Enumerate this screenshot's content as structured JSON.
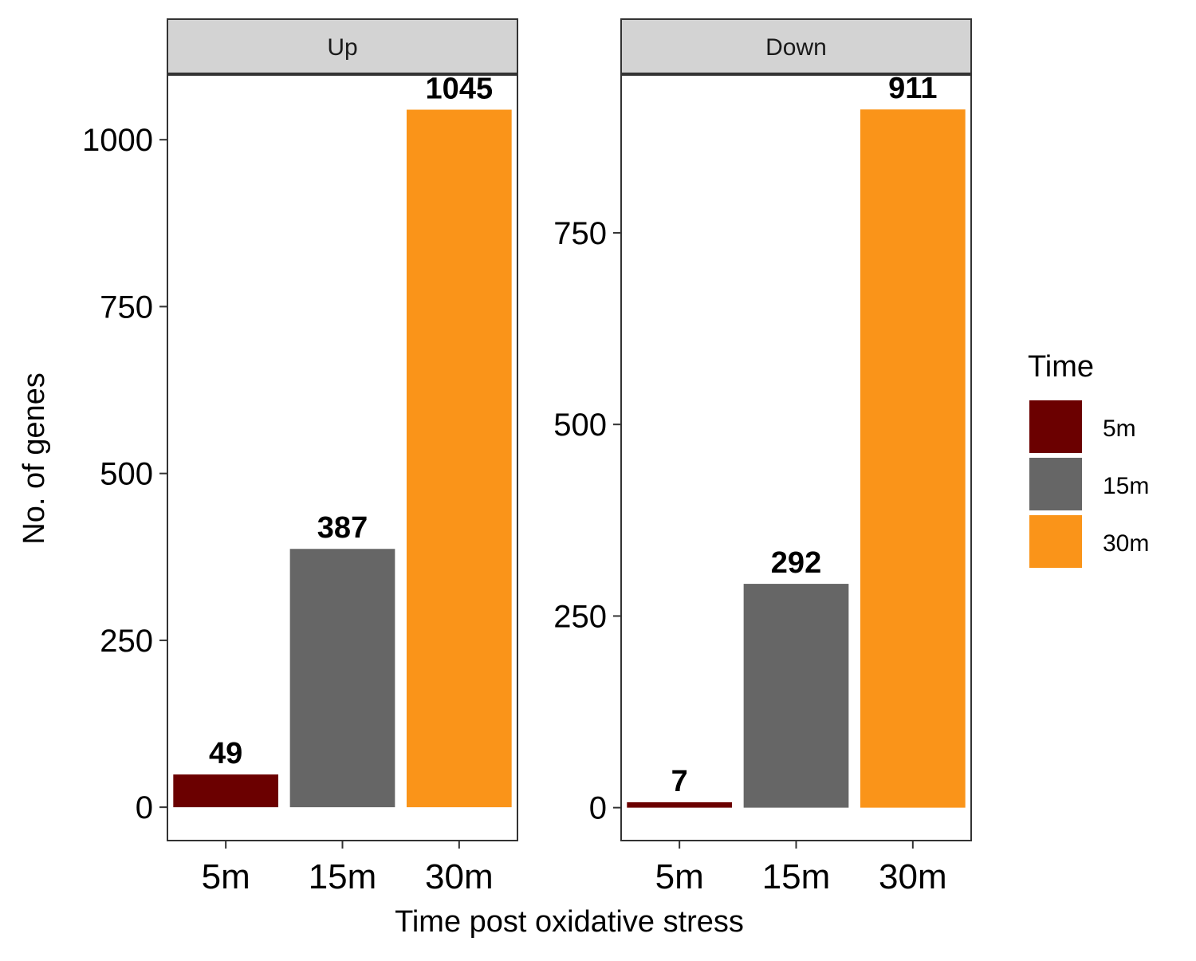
{
  "chart_data": {
    "type": "bar",
    "xlabel": "Time post oxidative stress",
    "ylabel": "No. of genes",
    "categories": [
      "5m",
      "15m",
      "30m"
    ],
    "colors": {
      "5m": "#6b0000",
      "15m": "#666666",
      "30m": "#fa9419"
    },
    "legend": {
      "title": "Time",
      "placement": "right",
      "entries": [
        "5m",
        "15m",
        "30m"
      ]
    },
    "panels": [
      {
        "name": "Up",
        "values": [
          49,
          387,
          1045
        ],
        "data_labels": [
          "49",
          "387",
          "1045"
        ],
        "ylim": [
          -50,
          1097
        ],
        "yticks": [
          0,
          250,
          500,
          750,
          1000
        ],
        "ytick_labels": [
          "0",
          "250",
          "500",
          "750",
          "1000"
        ]
      },
      {
        "name": "Down",
        "values": [
          7,
          292,
          911
        ],
        "data_labels": [
          "7",
          "292",
          "911"
        ],
        "ylim": [
          -43,
          956
        ],
        "yticks": [
          0,
          250,
          500,
          750
        ],
        "ytick_labels": [
          "0",
          "250",
          "500",
          "750"
        ]
      }
    ],
    "grid": false
  }
}
